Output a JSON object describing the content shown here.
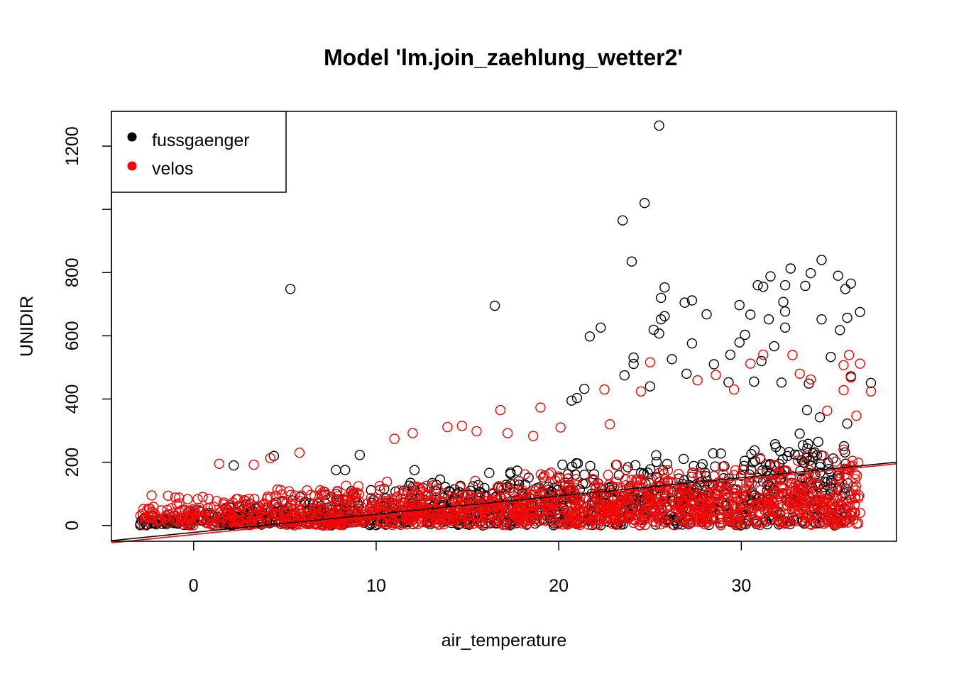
{
  "chart_data": {
    "type": "scatter",
    "title": "Model 'lm.join_zaehlung_wetter2'",
    "xlabel": "air_temperature",
    "ylabel": "UNIDIR",
    "xlim": [
      -4.5,
      38.5
    ],
    "ylim": [
      -50,
      1310
    ],
    "xticks": [
      {
        "value": 0,
        "label": "0"
      },
      {
        "value": 10,
        "label": "10"
      },
      {
        "value": 20,
        "label": "20"
      },
      {
        "value": 30,
        "label": "30"
      }
    ],
    "yticks": [
      {
        "value": 0,
        "label": "0"
      },
      {
        "value": 200,
        "label": "200"
      },
      {
        "value": 400,
        "label": "400"
      },
      {
        "value": 600,
        "label": "600"
      },
      {
        "value": 800,
        "label": "800"
      },
      {
        "value": 1000,
        "label": ""
      },
      {
        "value": 1200,
        "label": "1200"
      }
    ],
    "legend": {
      "position": "top-left",
      "entries": [
        {
          "label": "fussgaenger",
          "color": "#000000"
        },
        {
          "label": "velos",
          "color": "#ff0000"
        }
      ]
    },
    "series": [
      {
        "name": "fussgaenger",
        "color": "#000000",
        "marker": "open-circle",
        "fit_line": {
          "x": [
            -4.5,
            38.5
          ],
          "y": [
            -48,
            200
          ]
        },
        "cloud": {
          "n": 1100,
          "x_range": [
            -3,
            36
          ],
          "y_base": [
            5,
            110
          ],
          "y_spread": [
            25,
            230
          ],
          "seed": 11
        },
        "points": [
          [
            25.5,
            1265
          ],
          [
            24.7,
            1020
          ],
          [
            23.5,
            965
          ],
          [
            24.0,
            835
          ],
          [
            5.3,
            748
          ],
          [
            16.5,
            695
          ],
          [
            34.4,
            840
          ],
          [
            32.7,
            813
          ],
          [
            33.8,
            798
          ],
          [
            35.3,
            790
          ],
          [
            31.6,
            788
          ],
          [
            36.0,
            765
          ],
          [
            30.9,
            760
          ],
          [
            31.2,
            755
          ],
          [
            32.4,
            760
          ],
          [
            33.5,
            758
          ],
          [
            35.7,
            748
          ],
          [
            25.8,
            753
          ],
          [
            25.6,
            720
          ],
          [
            27.3,
            712
          ],
          [
            26.9,
            705
          ],
          [
            32.3,
            707
          ],
          [
            36.5,
            675
          ],
          [
            32.4,
            677
          ],
          [
            35.8,
            657
          ],
          [
            31.5,
            652
          ],
          [
            34.4,
            652
          ],
          [
            29.9,
            697
          ],
          [
            30.5,
            667
          ],
          [
            28.1,
            668
          ],
          [
            25.8,
            662
          ],
          [
            25.6,
            652
          ],
          [
            21.7,
            598
          ],
          [
            22.3,
            626
          ],
          [
            25.2,
            619
          ],
          [
            25.5,
            607
          ],
          [
            35.4,
            618
          ],
          [
            27.3,
            576
          ],
          [
            29.9,
            579
          ],
          [
            30.2,
            603
          ],
          [
            32.4,
            626
          ],
          [
            31.8,
            567
          ],
          [
            34.9,
            533
          ],
          [
            26.2,
            526
          ],
          [
            24.1,
            531
          ],
          [
            24.1,
            511
          ],
          [
            27.0,
            480
          ],
          [
            37.1,
            451
          ],
          [
            36.0,
            472
          ],
          [
            33.7,
            449
          ],
          [
            32.2,
            452
          ],
          [
            21.4,
            432
          ],
          [
            21.0,
            403
          ],
          [
            20.7,
            395
          ],
          [
            9.1,
            223
          ],
          [
            4.4,
            220
          ],
          [
            2.2,
            190
          ],
          [
            7.8,
            175
          ],
          [
            8.3,
            175
          ],
          [
            12.1,
            175
          ],
          [
            23.6,
            475
          ],
          [
            25.0,
            440
          ],
          [
            28.5,
            510
          ],
          [
            29.4,
            540
          ],
          [
            31.1,
            520
          ],
          [
            33.6,
            365
          ],
          [
            35.8,
            322
          ],
          [
            34.3,
            342
          ],
          [
            29.3,
            453
          ],
          [
            30.7,
            455
          ]
        ]
      },
      {
        "name": "velos",
        "color": "#ff0000",
        "marker": "open-circle",
        "fit_line": {
          "x": [
            -4.5,
            38.5
          ],
          "y": [
            -55,
            195
          ]
        },
        "cloud": {
          "n": 1350,
          "x_range": [
            -3,
            36.5
          ],
          "y_base": [
            25,
            75
          ],
          "y_spread": [
            70,
            170
          ],
          "seed": 29
        },
        "points": [
          [
            35.9,
            539
          ],
          [
            32.8,
            539
          ],
          [
            36.5,
            512
          ],
          [
            25.0,
            516
          ],
          [
            35.6,
            507
          ],
          [
            36.0,
            468
          ],
          [
            33.8,
            462
          ],
          [
            37.1,
            424
          ],
          [
            35.6,
            428
          ],
          [
            24.5,
            424
          ],
          [
            22.5,
            430
          ],
          [
            19.0,
            373
          ],
          [
            16.8,
            365
          ],
          [
            14.7,
            315
          ],
          [
            13.9,
            311
          ],
          [
            11.0,
            274
          ],
          [
            12.0,
            292
          ],
          [
            5.8,
            230
          ],
          [
            4.2,
            213
          ],
          [
            1.4,
            195
          ],
          [
            3.3,
            192
          ],
          [
            -2.3,
            95
          ],
          [
            -1.4,
            94
          ],
          [
            -0.8,
            88
          ],
          [
            0.5,
            90
          ],
          [
            31.2,
            540
          ],
          [
            30.5,
            512
          ],
          [
            28.6,
            476
          ],
          [
            27.6,
            459
          ],
          [
            29.6,
            430
          ],
          [
            33.2,
            480
          ],
          [
            34.7,
            363
          ],
          [
            36.3,
            347
          ],
          [
            35.6,
            240
          ],
          [
            34.5,
            220
          ],
          [
            35.9,
            175
          ],
          [
            35.6,
            70
          ],
          [
            36.5,
            40
          ],
          [
            35.0,
            35
          ],
          [
            33.6,
            30
          ],
          [
            31.6,
            20
          ],
          [
            30.7,
            18
          ],
          [
            29.8,
            12
          ],
          [
            28.1,
            10
          ],
          [
            26.8,
            15
          ],
          [
            18.6,
            283
          ],
          [
            20.1,
            310
          ],
          [
            17.2,
            292
          ],
          [
            15.5,
            298
          ],
          [
            22.8,
            320
          ]
        ]
      }
    ]
  }
}
